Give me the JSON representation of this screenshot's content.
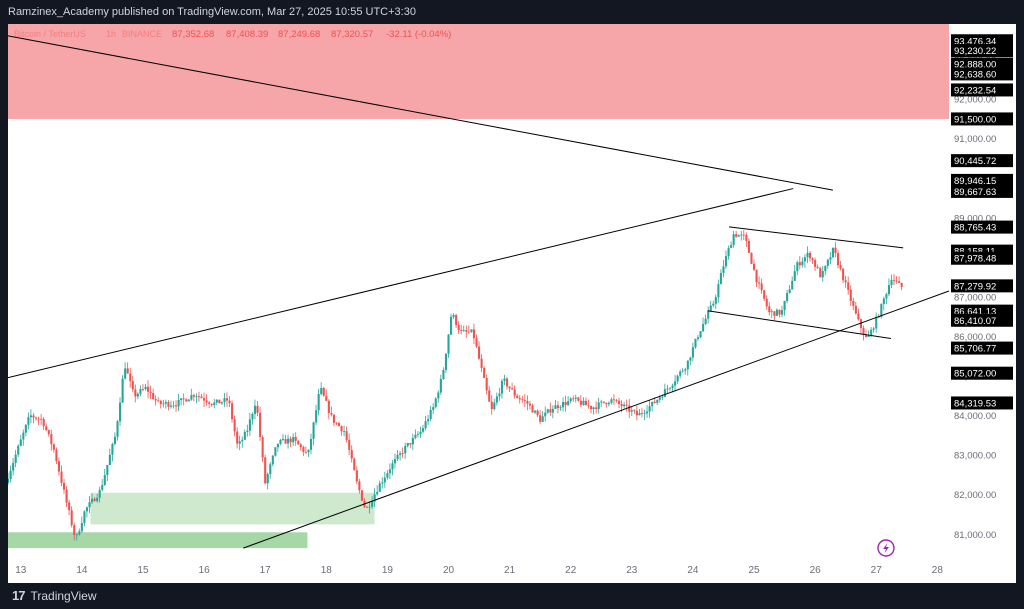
{
  "publisher_line": "Ramzinex_Academy published on TradingView.com, Mar 27, 2025 10:55 UTC+3:30",
  "brand": "TradingView",
  "icons": {
    "brand_logo": "tradingview-logo-icon",
    "lightning": "lightning-icon"
  },
  "legend": {
    "symbol": "Bitcoin / TetherUS",
    "timeframe": "1h",
    "exchange": "BINANCE",
    "open": "87,352.68",
    "high": "87,408.39",
    "low": "87,249.68",
    "close": "87,320.57",
    "change": "-32.11 (-0.04%)"
  },
  "colors": {
    "up": "#26a69a",
    "down": "#ef5350",
    "supply_zone": "#f6a5a9",
    "demand_zone": "#cfe9cf",
    "demand_zone_strong": "#a6d7a6",
    "trendline": "#000000",
    "axis_text": "#6a6d78"
  },
  "chart_data": {
    "type": "candlestick",
    "x_axis": {
      "unit": "date (March 2025)",
      "ticks": [
        "13",
        "14",
        "15",
        "16",
        "17",
        "18",
        "19",
        "20",
        "21",
        "22",
        "23",
        "24",
        "25",
        "26",
        "27",
        "28"
      ],
      "range": [
        12.8,
        28.2
      ]
    },
    "y_axis": {
      "position": "right",
      "range": [
        80400,
        93900
      ],
      "ticks": [
        "81,000.00",
        "82,000.00",
        "83,000.00",
        "84,000.00",
        "85,000.00",
        "86,000.00",
        "87,000.00",
        "88,000.00",
        "89,000.00",
        "90,000.00",
        "91,000.00",
        "92,000.00",
        "93,000.00"
      ],
      "price_labels": [
        "93,476.34",
        "93,230.22",
        "92,888.00",
        "92,638.60",
        "92,232.54",
        "91,500.00",
        "90,445.72",
        "89,946.15",
        "89,667.63",
        "88,765.43",
        "88,158.11",
        "87,978.48",
        "87,279.92",
        "86,641.13",
        "86,410.07",
        "85,706.77",
        "85,072.00",
        "84,319.53"
      ]
    },
    "zones": [
      {
        "type": "supply",
        "x1": 12.8,
        "x2": 28.2,
        "y1": 91500,
        "y2": 93900
      },
      {
        "type": "demand",
        "x1": 14.15,
        "x2": 18.8,
        "y1": 81250,
        "y2": 82050
      },
      {
        "type": "demand",
        "x1": 12.8,
        "x2": 17.7,
        "y1": 80650,
        "y2": 81050
      }
    ],
    "trendlines": [
      {
        "x1": 12.8,
        "y1": 93600,
        "x2": 26.3,
        "y2": 89700
      },
      {
        "x1": 12.8,
        "y1": 84960,
        "x2": 25.65,
        "y2": 89740
      },
      {
        "x1": 16.65,
        "y1": 80650,
        "x2": 28.2,
        "y2": 87150
      },
      {
        "x1": 24.6,
        "y1": 88770,
        "x2": 27.45,
        "y2": 88240
      },
      {
        "x1": 24.25,
        "y1": 86650,
        "x2": 27.25,
        "y2": 85950
      }
    ],
    "price_path": [
      [
        12.8,
        82300
      ],
      [
        13.2,
        84000
      ],
      [
        13.4,
        83900
      ],
      [
        13.6,
        83100
      ],
      [
        13.8,
        81800
      ],
      [
        13.95,
        80850
      ],
      [
        14.1,
        81600
      ],
      [
        14.35,
        82100
      ],
      [
        14.6,
        83500
      ],
      [
        14.75,
        85300
      ],
      [
        14.9,
        84500
      ],
      [
        15.1,
        84700
      ],
      [
        15.3,
        84300
      ],
      [
        15.6,
        84300
      ],
      [
        15.9,
        84550
      ],
      [
        16.2,
        84300
      ],
      [
        16.45,
        84400
      ],
      [
        16.6,
        83200
      ],
      [
        16.75,
        83600
      ],
      [
        16.9,
        84400
      ],
      [
        17.05,
        82300
      ],
      [
        17.25,
        83300
      ],
      [
        17.5,
        83400
      ],
      [
        17.75,
        83000
      ],
      [
        17.95,
        84700
      ],
      [
        18.15,
        83900
      ],
      [
        18.35,
        83600
      ],
      [
        18.55,
        82300
      ],
      [
        18.7,
        81600
      ],
      [
        18.9,
        82200
      ],
      [
        19.1,
        82700
      ],
      [
        19.35,
        83200
      ],
      [
        19.6,
        83600
      ],
      [
        19.8,
        84200
      ],
      [
        19.95,
        85000
      ],
      [
        20.1,
        86600
      ],
      [
        20.25,
        86100
      ],
      [
        20.45,
        86100
      ],
      [
        20.6,
        85100
      ],
      [
        20.75,
        84100
      ],
      [
        20.95,
        84900
      ],
      [
        21.15,
        84500
      ],
      [
        21.35,
        84300
      ],
      [
        21.55,
        83900
      ],
      [
        21.75,
        84200
      ],
      [
        22.1,
        84400
      ],
      [
        22.4,
        84200
      ],
      [
        22.7,
        84400
      ],
      [
        22.95,
        84200
      ],
      [
        23.15,
        84000
      ],
      [
        23.4,
        84300
      ],
      [
        23.7,
        84800
      ],
      [
        23.95,
        85300
      ],
      [
        24.15,
        86100
      ],
      [
        24.4,
        86900
      ],
      [
        24.55,
        87800
      ],
      [
        24.72,
        88600
      ],
      [
        24.9,
        88500
      ],
      [
        25.1,
        87400
      ],
      [
        25.3,
        86600
      ],
      [
        25.5,
        86600
      ],
      [
        25.75,
        87800
      ],
      [
        25.95,
        88100
      ],
      [
        26.15,
        87500
      ],
      [
        26.35,
        88200
      ],
      [
        26.55,
        87300
      ],
      [
        26.75,
        86400
      ],
      [
        26.9,
        85900
      ],
      [
        27.1,
        86600
      ],
      [
        27.3,
        87500
      ],
      [
        27.45,
        87250
      ]
    ]
  }
}
